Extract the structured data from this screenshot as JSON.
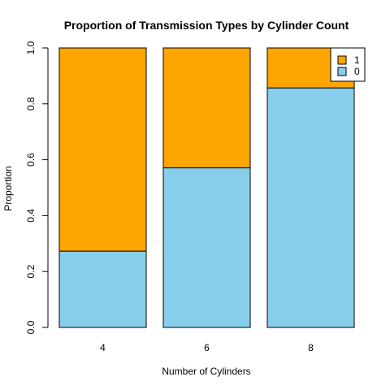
{
  "chart_data": {
    "type": "bar",
    "stacked": true,
    "title": "Proportion of Transmission Types by Cylinder Count",
    "xlabel": "Number of Cylinders",
    "ylabel": "Proportion",
    "categories": [
      "4",
      "6",
      "8"
    ],
    "ylim": [
      0,
      1
    ],
    "yticks": [
      "0.0",
      "0.2",
      "0.4",
      "0.6",
      "0.8",
      "1.0"
    ],
    "grid": false,
    "legend_position": "top-right",
    "series": [
      {
        "name": "0",
        "values": [
          0.273,
          0.571,
          0.857
        ],
        "color": "#87CEEB"
      },
      {
        "name": "1",
        "values": [
          0.727,
          0.429,
          0.143
        ],
        "color": "#FFA500"
      }
    ],
    "legend_order": [
      "1",
      "0"
    ]
  }
}
